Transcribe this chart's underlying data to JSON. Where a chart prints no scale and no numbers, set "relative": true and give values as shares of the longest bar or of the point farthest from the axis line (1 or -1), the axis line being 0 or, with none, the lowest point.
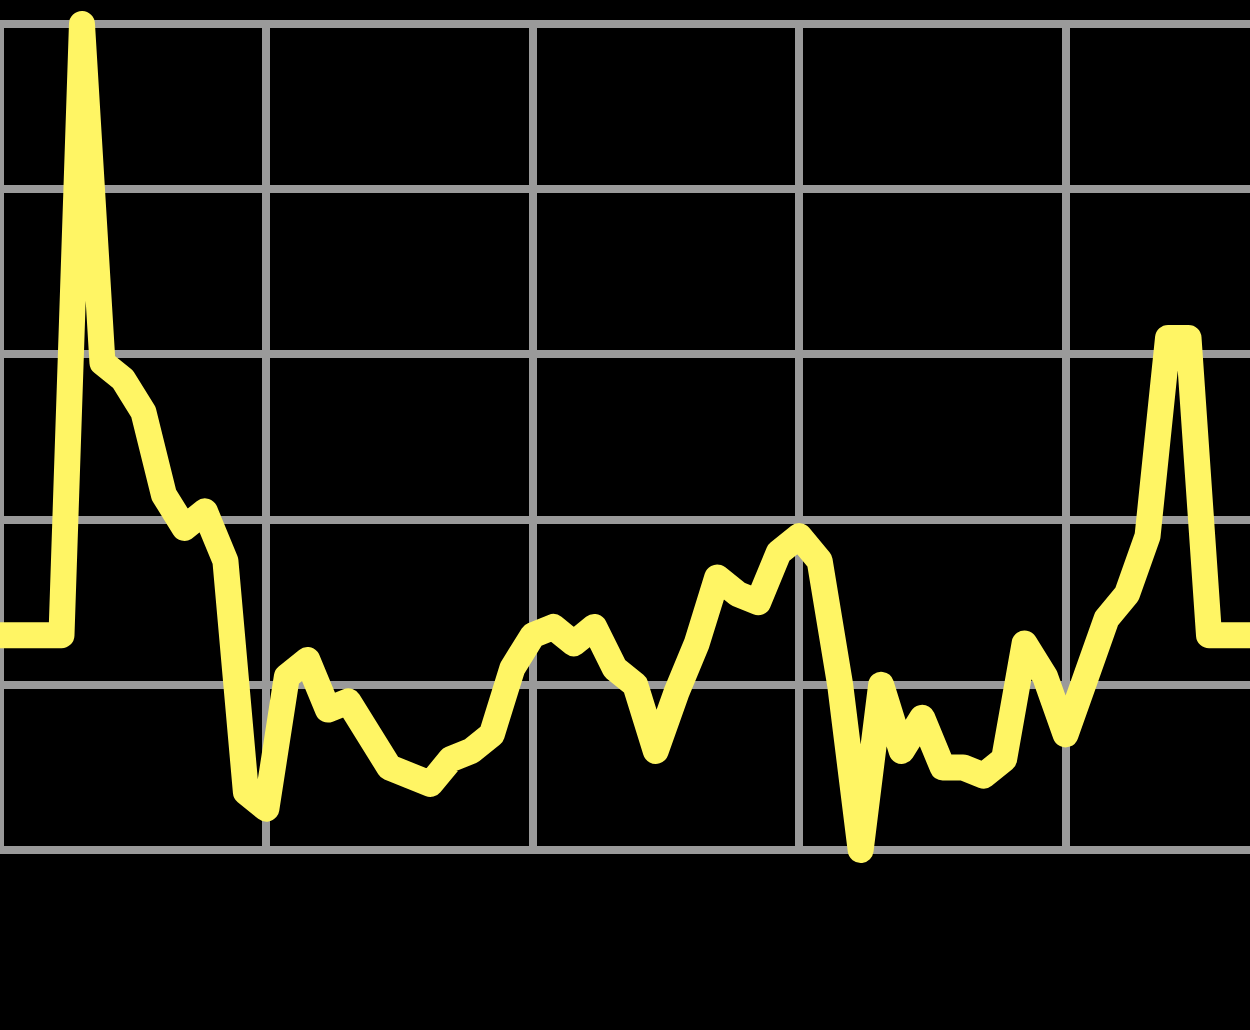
{
  "chart_data": {
    "type": "line",
    "relative": true,
    "grid": true,
    "legend": false,
    "marker": "none",
    "line_style": "solid",
    "categories": [
      null,
      null,
      null,
      null,
      null,
      null,
      null,
      null,
      null,
      null,
      null,
      null,
      null,
      null,
      null,
      null,
      null,
      null,
      null,
      null,
      null,
      null,
      null,
      null,
      null,
      null,
      null,
      null,
      null,
      null,
      null,
      null,
      null,
      null,
      null,
      null,
      null,
      null,
      null,
      null,
      null,
      null,
      null,
      null,
      null,
      null,
      null,
      null,
      null,
      null,
      null,
      null,
      null,
      null,
      null,
      null,
      null,
      null,
      null,
      null,
      null,
      null
    ],
    "series": [
      {
        "color": "#fff564",
        "values": [
          0.26,
          0.26,
          0.26,
          0.26,
          1,
          0.59,
          0.57,
          0.53,
          0.43,
          0.39,
          0.41,
          0.35,
          0.07,
          0.05,
          0.21,
          0.23,
          0.17,
          0.18,
          0.14,
          0.1,
          0.09,
          0.08,
          0.11,
          0.12,
          0.14,
          0.22,
          0.26,
          0.27,
          0.25,
          0.27,
          0.22,
          0.2,
          0.12,
          0.19,
          0.25,
          0.33,
          0.31,
          0.3,
          0.36,
          0.38,
          0.35,
          0.2,
          0,
          0.2,
          0.12,
          0.16,
          0.1,
          0.1,
          0.09,
          0.11,
          0.25,
          0.21,
          0.14,
          0.21,
          0.28,
          0.31,
          0.38,
          0.62,
          0.62,
          0.26,
          0.26,
          0.26
        ]
      }
    ]
  }
}
